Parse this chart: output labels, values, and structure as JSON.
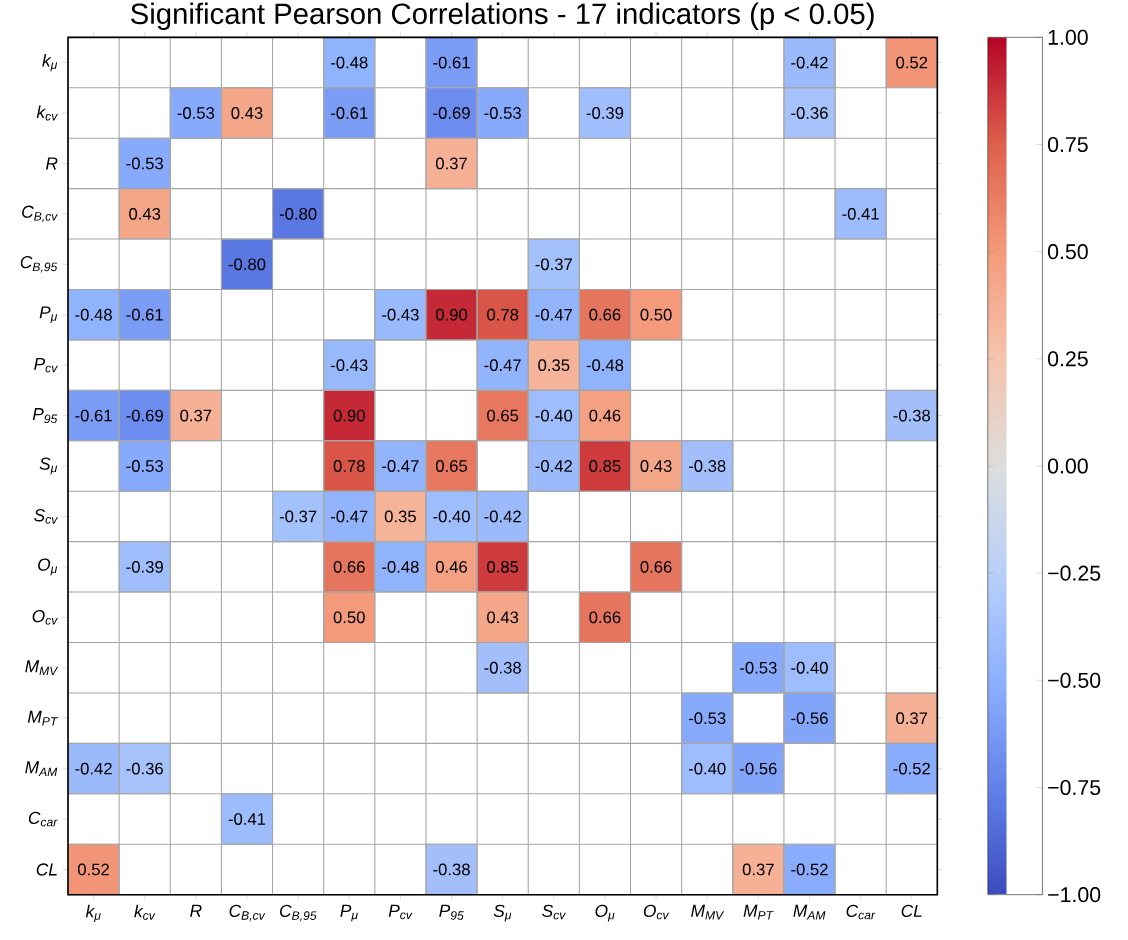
{
  "chart_data": {
    "type": "heatmap",
    "title": "Significant Pearson Correlations - 17 indicators (p < 0.05)",
    "categories": [
      "k$_{μ}$",
      "k$_{cv}$",
      "R",
      "C$_{B,cv}$",
      "C$_{B,95}$",
      "P$_{μ}$",
      "P$_{cv}$",
      "P$_{95}$",
      "S$_{μ}$",
      "S$_{cv}$",
      "O$_{μ}$",
      "O$_{cv}$",
      "M$_{MV}$",
      "M$_{PT}$",
      "M$_{AM}$",
      "C$_{car}$",
      "CL"
    ],
    "y_categories": [
      "k$_{μ}$",
      "k$_{cv}$",
      "R",
      "C$_{B,cv}$",
      "C$_{B,95}$",
      "P$_{μ}$",
      "P$_{cv}$",
      "P$_{95}$",
      "S$_{μ}$",
      "S$_{cv}$",
      "O$_{μ}$",
      "O$_{cv}$",
      "M$_{MV}$",
      "M$_{PT}$",
      "M$_{AM}$",
      "C$_{car}$",
      "CL"
    ],
    "cells": [
      [
        null,
        null,
        null,
        null,
        null,
        -0.48,
        null,
        -0.61,
        null,
        null,
        null,
        null,
        null,
        null,
        -0.42,
        null,
        0.52
      ],
      [
        null,
        null,
        -0.53,
        0.43,
        null,
        -0.61,
        null,
        -0.69,
        -0.53,
        null,
        -0.39,
        null,
        null,
        null,
        -0.36,
        null,
        null
      ],
      [
        null,
        -0.53,
        null,
        null,
        null,
        null,
        null,
        0.37,
        null,
        null,
        null,
        null,
        null,
        null,
        null,
        null,
        null
      ],
      [
        null,
        0.43,
        null,
        null,
        -0.8,
        null,
        null,
        null,
        null,
        null,
        null,
        null,
        null,
        null,
        null,
        -0.41,
        null
      ],
      [
        null,
        null,
        null,
        -0.8,
        null,
        null,
        null,
        null,
        null,
        -0.37,
        null,
        null,
        null,
        null,
        null,
        null,
        null
      ],
      [
        -0.48,
        -0.61,
        null,
        null,
        null,
        null,
        -0.43,
        0.9,
        0.78,
        -0.47,
        0.66,
        0.5,
        null,
        null,
        null,
        null,
        null
      ],
      [
        null,
        null,
        null,
        null,
        null,
        -0.43,
        null,
        null,
        -0.47,
        0.35,
        -0.48,
        null,
        null,
        null,
        null,
        null,
        null
      ],
      [
        -0.61,
        -0.69,
        0.37,
        null,
        null,
        0.9,
        null,
        null,
        0.65,
        -0.4,
        0.46,
        null,
        null,
        null,
        null,
        null,
        -0.38
      ],
      [
        null,
        -0.53,
        null,
        null,
        null,
        0.78,
        -0.47,
        0.65,
        null,
        -0.42,
        0.85,
        0.43,
        -0.38,
        null,
        null,
        null,
        null
      ],
      [
        null,
        null,
        null,
        null,
        -0.37,
        -0.47,
        0.35,
        -0.4,
        -0.42,
        null,
        null,
        null,
        null,
        null,
        null,
        null,
        null
      ],
      [
        null,
        -0.39,
        null,
        null,
        null,
        0.66,
        -0.48,
        0.46,
        0.85,
        null,
        null,
        0.66,
        null,
        null,
        null,
        null,
        null
      ],
      [
        null,
        null,
        null,
        null,
        null,
        0.5,
        null,
        null,
        0.43,
        null,
        0.66,
        null,
        null,
        null,
        null,
        null,
        null
      ],
      [
        null,
        null,
        null,
        null,
        null,
        null,
        null,
        null,
        -0.38,
        null,
        null,
        null,
        null,
        -0.53,
        -0.4,
        null,
        null
      ],
      [
        null,
        null,
        null,
        null,
        null,
        null,
        null,
        null,
        null,
        null,
        null,
        null,
        -0.53,
        null,
        -0.56,
        null,
        0.37
      ],
      [
        -0.42,
        -0.36,
        null,
        null,
        null,
        null,
        null,
        null,
        null,
        null,
        null,
        null,
        -0.4,
        -0.56,
        null,
        null,
        -0.52
      ],
      [
        null,
        null,
        null,
        -0.41,
        null,
        null,
        null,
        null,
        null,
        null,
        null,
        null,
        null,
        null,
        null,
        null,
        null
      ],
      [
        0.52,
        null,
        null,
        null,
        null,
        null,
        null,
        -0.38,
        null,
        null,
        null,
        null,
        null,
        0.37,
        -0.52,
        null,
        null
      ]
    ],
    "clim": [
      -1,
      1
    ],
    "cticks": [
      {
        "value": -1,
        "label": "−1.00"
      },
      {
        "value": -0.75,
        "label": "−0.75"
      },
      {
        "value": -0.5,
        "label": "−0.50"
      },
      {
        "value": -0.25,
        "label": "−0.25"
      },
      {
        "value": 0,
        "label": "0.00"
      },
      {
        "value": 0.25,
        "label": "0.25"
      },
      {
        "value": 0.5,
        "label": "0.50"
      },
      {
        "value": 0.75,
        "label": "0.75"
      },
      {
        "value": 1,
        "label": "1.00"
      }
    ],
    "cell_labels": [
      [
        null,
        null,
        null,
        null,
        null,
        "-0.48",
        null,
        "-0.61",
        null,
        null,
        null,
        null,
        null,
        null,
        "-0.42",
        null,
        "0.52"
      ],
      [
        null,
        null,
        "-0.53",
        "0.43",
        null,
        "-0.61",
        null,
        "-0.69",
        "-0.53",
        null,
        "-0.39",
        null,
        null,
        null,
        "-0.36",
        null,
        null
      ],
      [
        null,
        "-0.53",
        null,
        null,
        null,
        null,
        null,
        "0.37",
        null,
        null,
        null,
        null,
        null,
        null,
        null,
        null,
        null
      ],
      [
        null,
        "0.43",
        null,
        null,
        "-0.80",
        null,
        null,
        null,
        null,
        null,
        null,
        null,
        null,
        null,
        null,
        "-0.41",
        null
      ],
      [
        null,
        null,
        null,
        "-0.80",
        null,
        null,
        null,
        null,
        null,
        "-0.37",
        null,
        null,
        null,
        null,
        null,
        null,
        null
      ],
      [
        "-0.48",
        "-0.61",
        null,
        null,
        null,
        null,
        "-0.43",
        "0.90",
        "0.78",
        "-0.47",
        "0.66",
        "0.50",
        null,
        null,
        null,
        null,
        null
      ],
      [
        null,
        null,
        null,
        null,
        null,
        "-0.43",
        null,
        null,
        "-0.47",
        "0.35",
        "-0.48",
        null,
        null,
        null,
        null,
        null,
        null
      ],
      [
        "-0.61",
        "-0.69",
        "0.37",
        null,
        null,
        "0.90",
        null,
        null,
        "0.65",
        "-0.40",
        "0.46",
        null,
        null,
        null,
        null,
        null,
        "-0.38"
      ],
      [
        null,
        "-0.53",
        null,
        null,
        null,
        "0.78",
        "-0.47",
        "0.65",
        null,
        "-0.42",
        "0.85",
        "0.43",
        "-0.38",
        null,
        null,
        null,
        null
      ],
      [
        null,
        null,
        null,
        null,
        "-0.37",
        "-0.47",
        "0.35",
        "-0.40",
        "-0.42",
        null,
        null,
        null,
        null,
        null,
        null,
        null,
        null
      ],
      [
        null,
        "-0.39",
        null,
        null,
        null,
        "0.66",
        "-0.48",
        "0.46",
        "0.85",
        null,
        null,
        "0.66",
        null,
        null,
        null,
        null,
        null
      ],
      [
        null,
        null,
        null,
        null,
        null,
        "0.50",
        null,
        null,
        "0.43",
        null,
        "0.66",
        null,
        null,
        null,
        null,
        null,
        null
      ],
      [
        null,
        null,
        null,
        null,
        null,
        null,
        null,
        null,
        "-0.38",
        null,
        null,
        null,
        null,
        "-0.53",
        "-0.40",
        null,
        null
      ],
      [
        null,
        null,
        null,
        null,
        null,
        null,
        null,
        null,
        null,
        null,
        null,
        null,
        "-0.53",
        null,
        "-0.56",
        null,
        "0.37"
      ],
      [
        "-0.42",
        "-0.36",
        null,
        null,
        null,
        null,
        null,
        null,
        null,
        null,
        null,
        null,
        "-0.40",
        "-0.56",
        null,
        null,
        "-0.52"
      ],
      [
        null,
        null,
        null,
        "-0.41",
        null,
        null,
        null,
        null,
        null,
        null,
        null,
        null,
        null,
        null,
        null,
        null,
        null
      ],
      [
        "0.52",
        null,
        null,
        null,
        null,
        null,
        null,
        "-0.38",
        null,
        null,
        null,
        null,
        null,
        "0.37",
        "-0.52",
        null,
        null
      ]
    ],
    "grid": true
  }
}
